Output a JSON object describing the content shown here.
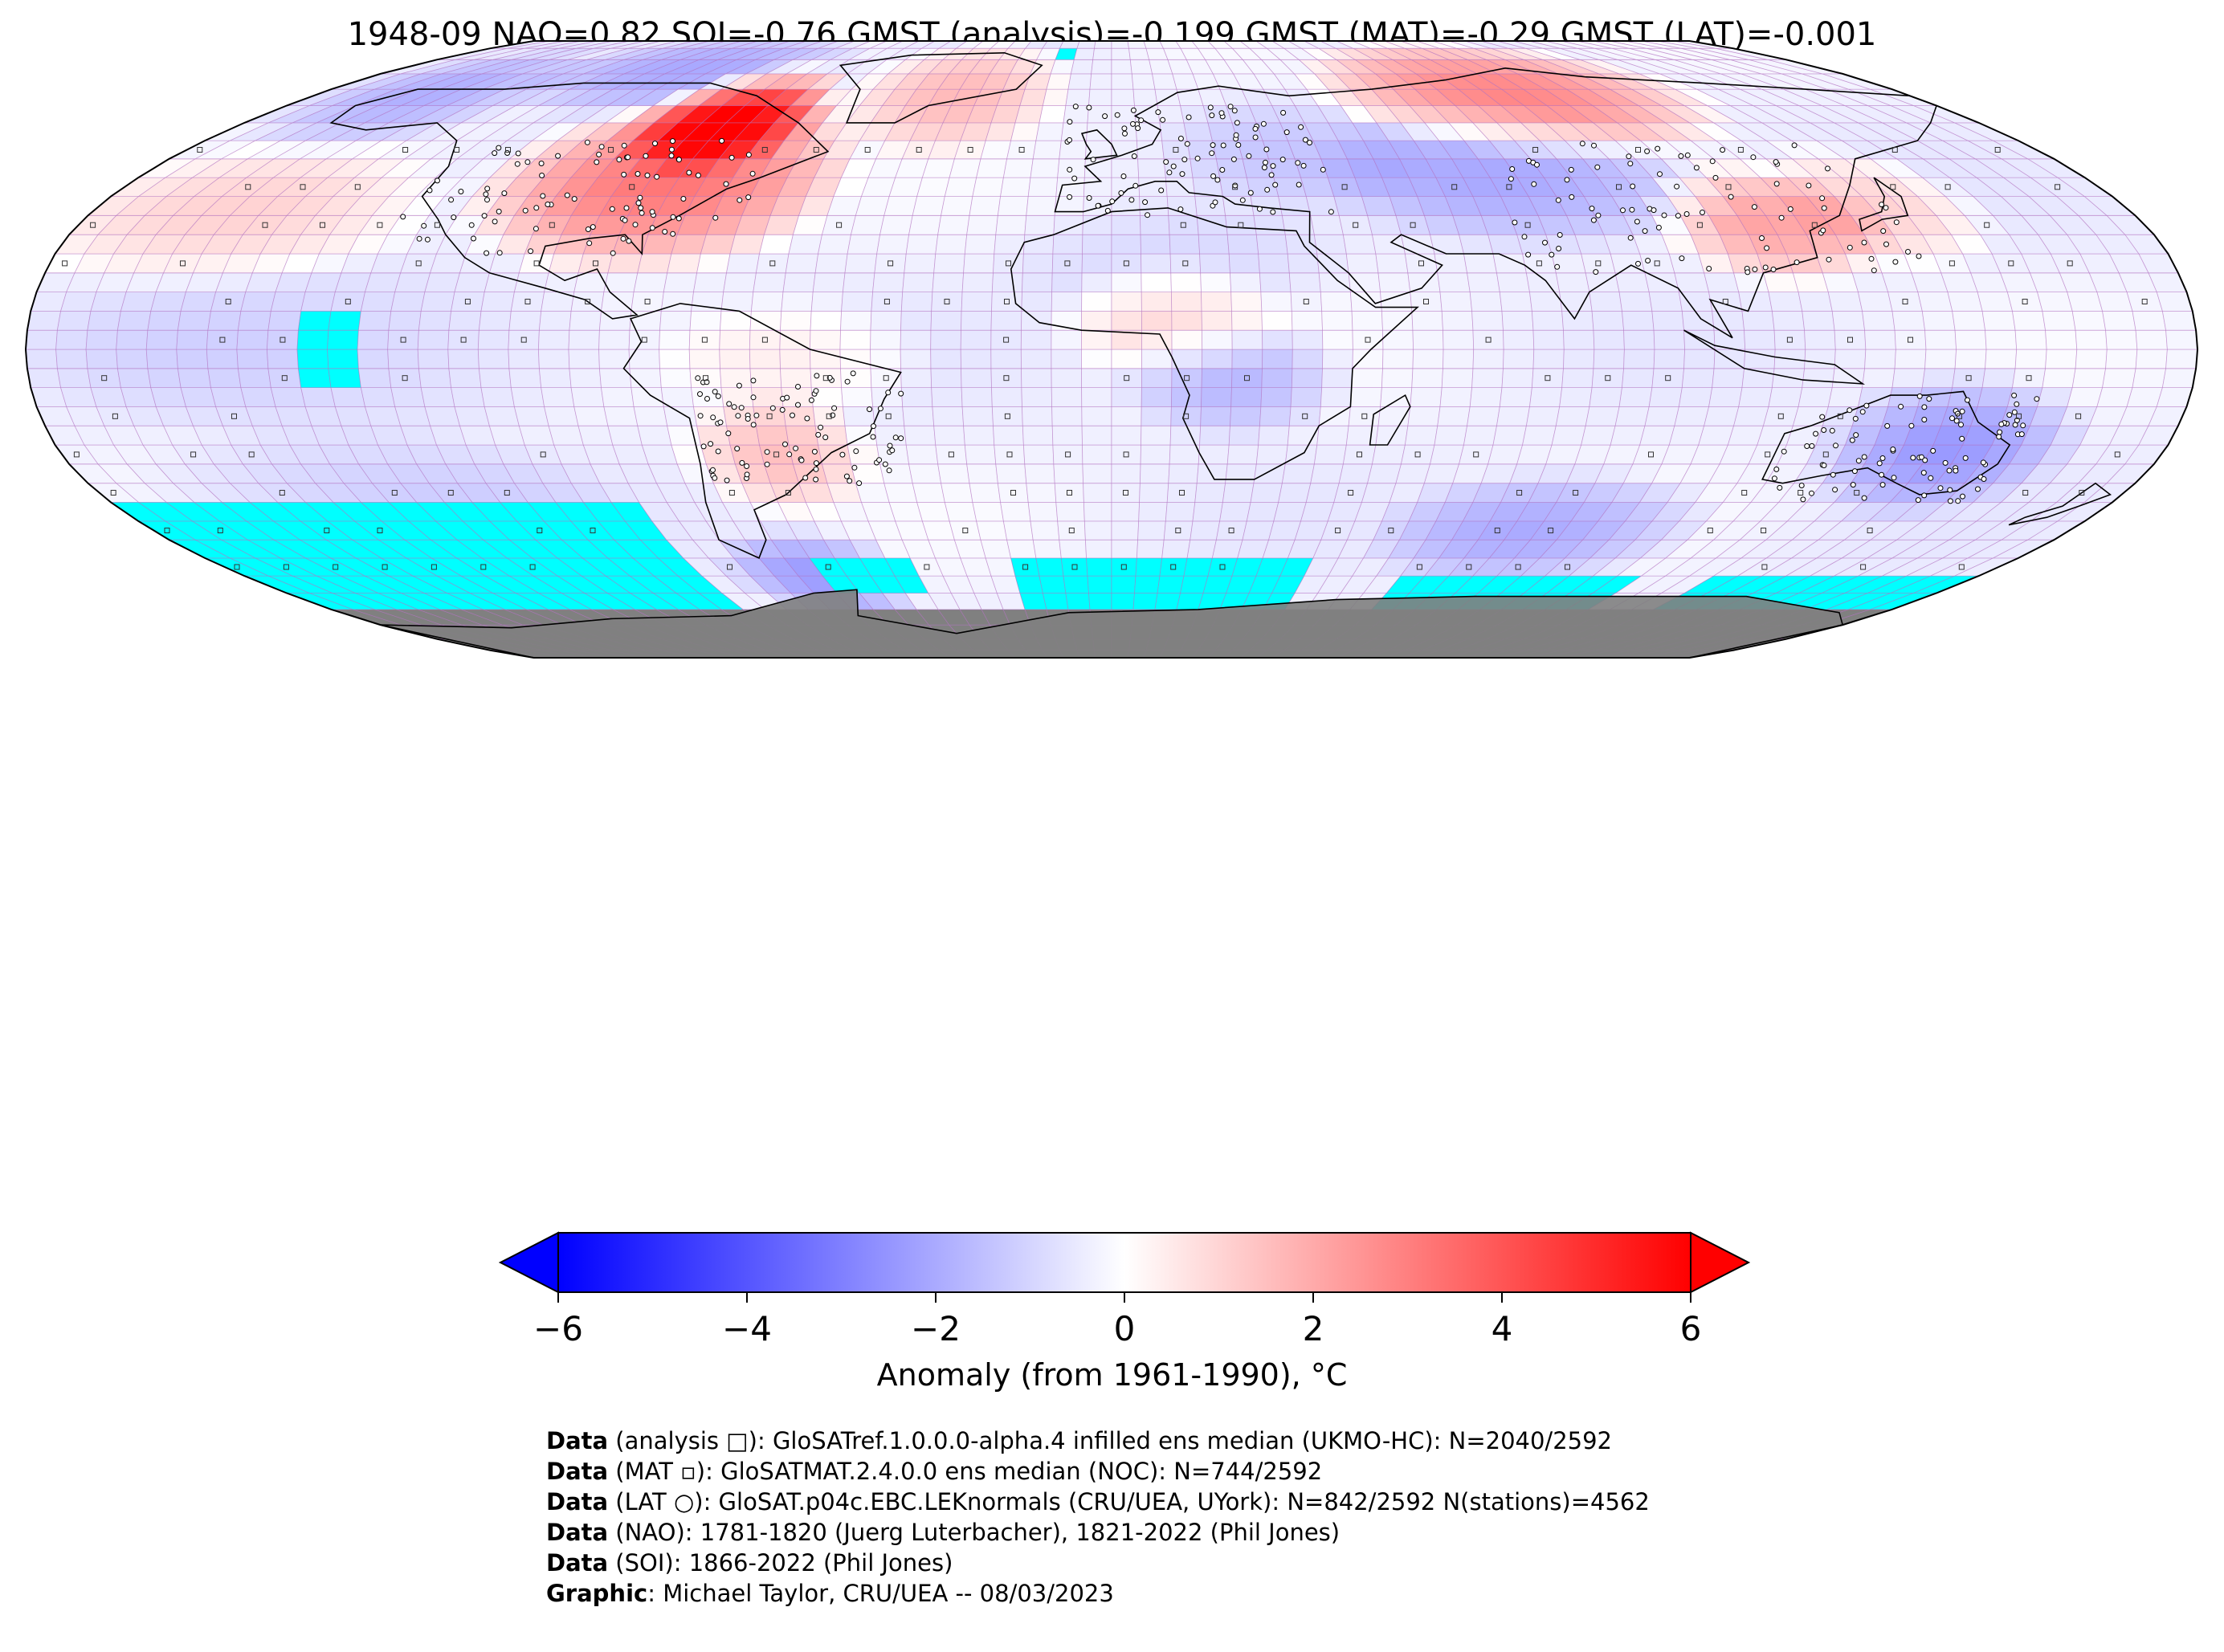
{
  "title": "1948-09 NAO=0.82 SOI=-0.76 GMST (analysis)=-0.199 GMST (MAT)=-0.29 GMST (LAT)=-0.001",
  "colors": {
    "cold_extreme": "#0000ff",
    "warm_extreme": "#ff0000",
    "neutral": "#ffffff",
    "missing_ocean": "#00ffff",
    "antarctica": "#808080",
    "gridline": "#b070c0",
    "coastline": "#000000"
  },
  "colorbar": {
    "min": -6,
    "max": 6,
    "ticks": [
      "−6",
      "−4",
      "−2",
      "0",
      "2",
      "4",
      "6"
    ],
    "tick_values": [
      -6,
      -4,
      -2,
      0,
      2,
      4,
      6
    ],
    "extend": "both",
    "label": "Anomaly (from 1961-1990), °C"
  },
  "credits": [
    {
      "bold": "Data",
      "text": " (analysis □): GloSATref.1.0.0.0-alpha.4 infilled ens median (UKMO-HC): N=2040/2592"
    },
    {
      "bold": "Data",
      "text": " (MAT ▫): GloSATMAT.2.4.0.0 ens median (NOC): N=744/2592"
    },
    {
      "bold": "Data",
      "text": " (LAT ○): GloSAT.p04c.EBC.LEKnormals (CRU/UEA, UYork): N=842/2592 N(stations)=4562"
    },
    {
      "bold": "Data",
      "text": " (NAO): 1781-1820 (Juerg Luterbacher), 1821-2022 (Phil Jones)"
    },
    {
      "bold": "Data",
      "text": " (SOI): 1866-2022 (Phil Jones)"
    },
    {
      "bold": "Graphic",
      "text": ": Michael Taylor, CRU/UEA -- 08/03/2023"
    }
  ],
  "map": {
    "projection": "Robinson",
    "grid_resolution_deg": 5,
    "anomaly_regions": [
      {
        "name": "eastern North America",
        "lon": [
          -105,
          -60
        ],
        "lat": [
          30,
          60
        ],
        "anomaly": 3.8
      },
      {
        "name": "Hudson Bay",
        "lon": [
          -90,
          -70
        ],
        "lat": [
          55,
          70
        ],
        "anomaly": 4.5
      },
      {
        "name": "Greenland",
        "lon": [
          -50,
          -20
        ],
        "lat": [
          60,
          80
        ],
        "anomaly": 2.0
      },
      {
        "name": "Arctic Canada",
        "lon": [
          -130,
          -80
        ],
        "lat": [
          70,
          85
        ],
        "anomaly": -1.8
      },
      {
        "name": "Alaska",
        "lon": [
          -170,
          -140
        ],
        "lat": [
          60,
          75
        ],
        "anomaly": -1.5
      },
      {
        "name": "North Pacific",
        "lon": [
          -180,
          -130
        ],
        "lat": [
          25,
          45
        ],
        "anomaly": 1.2
      },
      {
        "name": "northern Siberia",
        "lon": [
          60,
          120
        ],
        "lat": [
          60,
          80
        ],
        "anomaly": 3.2
      },
      {
        "name": "Central Asia",
        "lon": [
          50,
          100
        ],
        "lat": [
          35,
          55
        ],
        "anomaly": -1.8
      },
      {
        "name": "China",
        "lon": [
          105,
          125
        ],
        "lat": [
          25,
          40
        ],
        "anomaly": 2.4
      },
      {
        "name": "Japan",
        "lon": [
          128,
          145
        ],
        "lat": [
          30,
          45
        ],
        "anomaly": 1.5
      },
      {
        "name": "Eastern Europe",
        "lon": [
          20,
          50
        ],
        "lat": [
          45,
          60
        ],
        "anomaly": -0.8
      },
      {
        "name": "North Africa",
        "lon": [
          -10,
          30
        ],
        "lat": [
          15,
          30
        ],
        "anomaly": -0.5
      },
      {
        "name": "Sahel",
        "lon": [
          0,
          20
        ],
        "lat": [
          0,
          15
        ],
        "anomaly": 1.2
      },
      {
        "name": "Central Africa",
        "lon": [
          10,
          30
        ],
        "lat": [
          -15,
          0
        ],
        "anomaly": -1.5
      },
      {
        "name": "South America east",
        "lon": [
          -65,
          -50
        ],
        "lat": [
          -35,
          -20
        ],
        "anomaly": 1.8
      },
      {
        "name": "tropical South America",
        "lon": [
          -65,
          -40
        ],
        "lat": [
          -10,
          5
        ],
        "anomaly": 0.8
      },
      {
        "name": "Australia east",
        "lon": [
          130,
          155
        ],
        "lat": [
          -35,
          -15
        ],
        "anomaly": -2.0
      },
      {
        "name": "Indian Ocean south",
        "lon": [
          60,
          100
        ],
        "lat": [
          -55,
          -40
        ],
        "anomaly": -1.8
      },
      {
        "name": "South Pacific",
        "lon": [
          -160,
          -100
        ],
        "lat": [
          -50,
          -30
        ],
        "anomaly": -0.8
      },
      {
        "name": "Drake Passage",
        "lon": [
          -70,
          -50
        ],
        "lat": [
          -65,
          -55
        ],
        "anomaly": -2.0
      },
      {
        "name": "tropical Pacific",
        "lon": [
          -170,
          -90
        ],
        "lat": [
          -15,
          15
        ],
        "anomaly": -0.6
      }
    ],
    "missing_regions": [
      {
        "lon": [
          -135,
          -125
        ],
        "lat": [
          -10,
          10
        ]
      },
      {
        "lon": [
          -180,
          -85
        ],
        "lat": [
          -70,
          -40
        ]
      },
      {
        "lon": [
          -60,
          -40
        ],
        "lat": [
          -65,
          -55
        ]
      },
      {
        "lon": [
          -20,
          40
        ],
        "lat": [
          -70,
          -55
        ]
      },
      {
        "lon": [
          60,
          110
        ],
        "lat": [
          -70,
          -58
        ]
      },
      {
        "lon": [
          125,
          180
        ],
        "lat": [
          -70,
          -58
        ]
      },
      {
        "lon": [
          -15,
          -10
        ],
        "lat": [
          80,
          85
        ]
      }
    ]
  }
}
